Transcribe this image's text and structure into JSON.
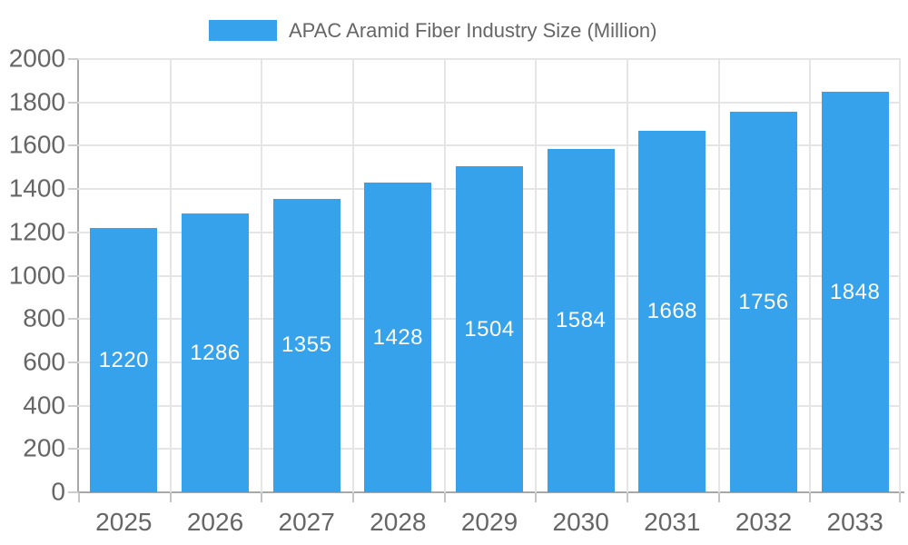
{
  "legend": {
    "label": "APAC Aramid Fiber Industry Size (Million)",
    "swatch_color": "#36A2EB"
  },
  "chart_data": {
    "type": "bar",
    "title": "APAC Aramid Fiber Industry Size (Million)",
    "series_name": "APAC Aramid Fiber Industry Size (Million)",
    "categories": [
      "2025",
      "2026",
      "2027",
      "2028",
      "2029",
      "2030",
      "2031",
      "2032",
      "2033"
    ],
    "values": [
      1220,
      1286,
      1355,
      1428,
      1504,
      1584,
      1668,
      1756,
      1848
    ],
    "xlabel": "",
    "ylabel": "",
    "ylim": [
      0,
      2000
    ],
    "yticks": [
      0,
      200,
      400,
      600,
      800,
      1000,
      1200,
      1400,
      1600,
      1800,
      2000
    ],
    "bar_color": "#36A2EB",
    "bar_label_color": "#ffffff",
    "grid": true,
    "legend_position": "top-center",
    "colors": {
      "axis_text": "#666666",
      "grid_line": "#e5e5e5",
      "axis_line": "#a8a8a8",
      "background": "#ffffff"
    }
  }
}
